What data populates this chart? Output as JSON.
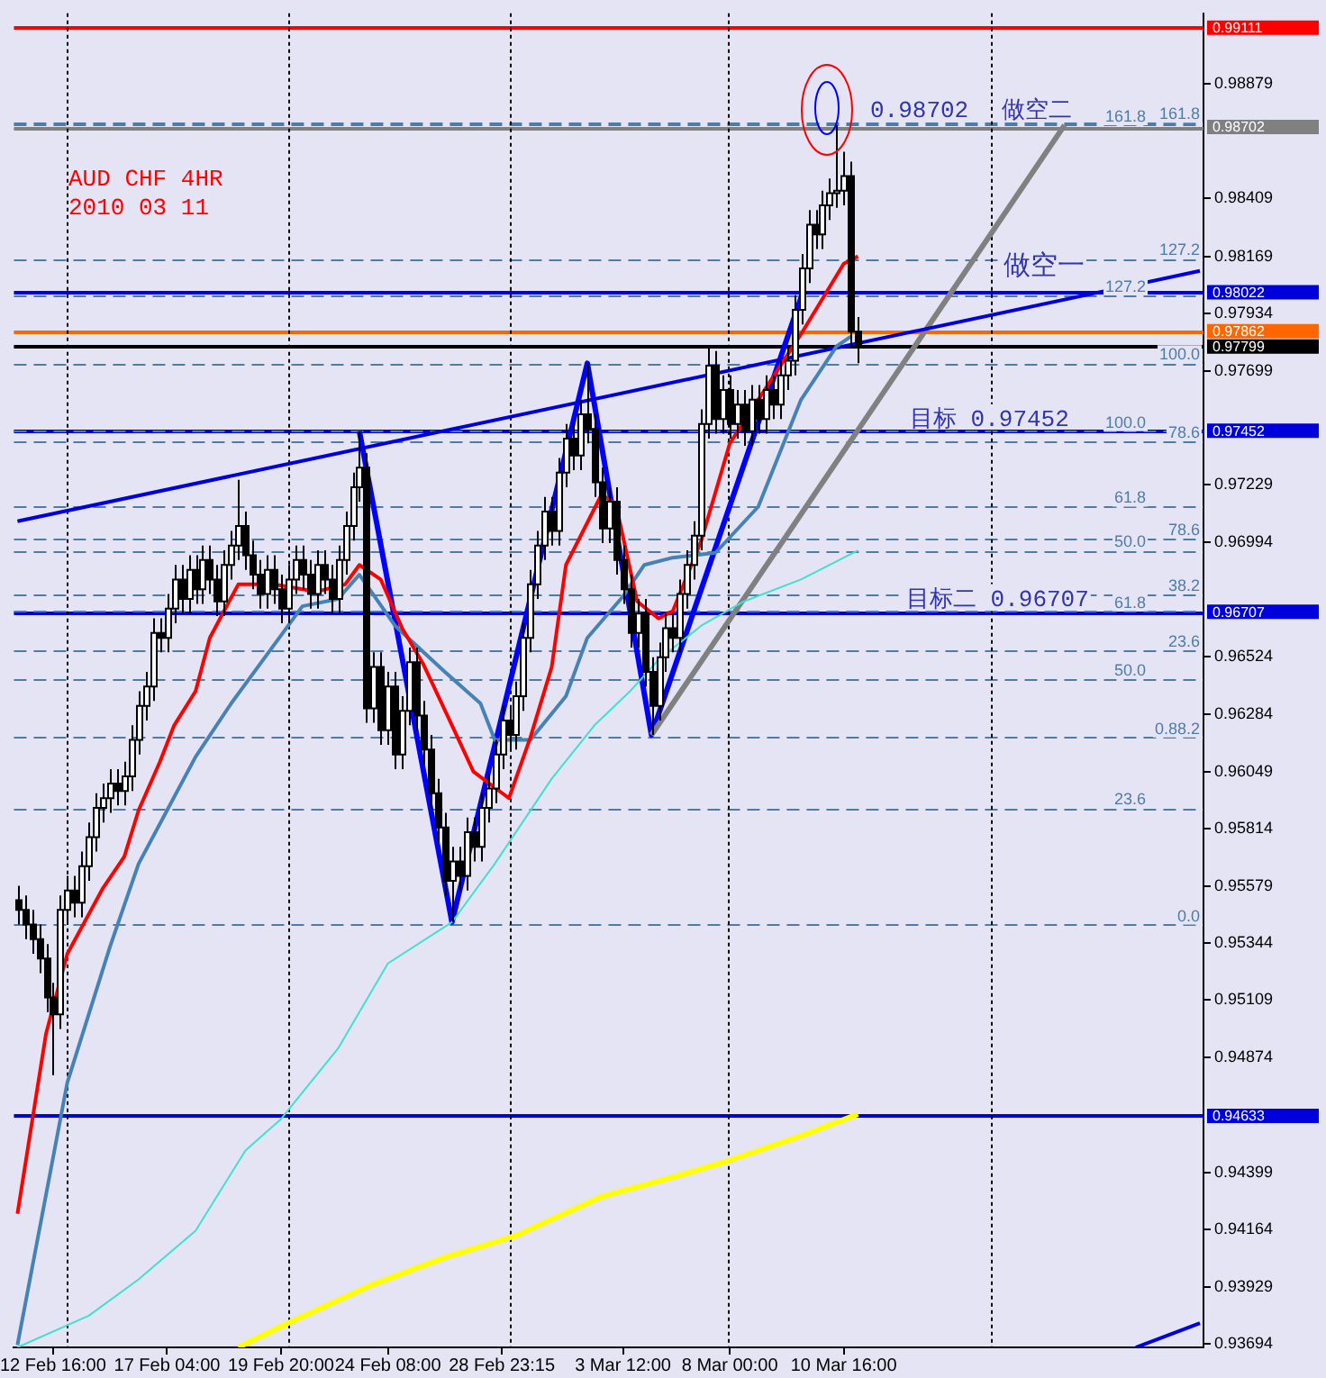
{
  "chart_data": {
    "type": "candlestick",
    "title": "AUD CHF 4HR",
    "subtitle": "2010 03 11",
    "categories": [
      null,
      null,
      null,
      null,
      null,
      "12 Feb 16:00",
      null,
      null,
      null,
      null,
      null,
      null,
      null,
      null,
      null,
      null,
      null,
      null,
      null,
      null,
      null,
      "17 Feb 04:00",
      null,
      null,
      null,
      null,
      null,
      null,
      null,
      null,
      null,
      null,
      null,
      null,
      null,
      null,
      null,
      "19 Feb 20:00",
      null,
      null,
      null,
      null,
      null,
      null,
      null,
      null,
      null,
      null,
      null,
      null,
      null,
      null,
      "24 Feb 08:00",
      null,
      null,
      null,
      null,
      null,
      null,
      null,
      null,
      null,
      null,
      null,
      null,
      null,
      null,
      null,
      "28 Feb 23:15",
      null,
      null,
      null,
      null,
      null,
      null,
      null,
      null,
      null,
      null,
      null,
      null,
      null,
      null,
      null,
      null,
      "3 Mar 12:00",
      null,
      null,
      null,
      null,
      null,
      null,
      null,
      null,
      null,
      null,
      null,
      null,
      null,
      null,
      "8 Mar 00:00",
      null,
      null,
      null,
      null,
      null,
      null,
      null,
      null,
      null,
      null,
      null,
      null,
      null,
      null,
      null,
      "10 Mar 16:00",
      null,
      null,
      null,
      null,
      null,
      null,
      null,
      null,
      null,
      null,
      null,
      null,
      null,
      null,
      null,
      null,
      null,
      null,
      null,
      null,
      null,
      null,
      null,
      null,
      null,
      null,
      null,
      null,
      null,
      null,
      null,
      null,
      null,
      null,
      null,
      null,
      null,
      null,
      null,
      null,
      null,
      null,
      null,
      null,
      null,
      null,
      null,
      null,
      null,
      null
    ],
    "ohlc": [
      [
        0.9552,
        0.9558,
        0.9542,
        0.9548
      ],
      [
        0.9548,
        0.9554,
        0.9536,
        0.9542
      ],
      [
        0.9542,
        0.9548,
        0.953,
        0.9536
      ],
      [
        0.9536,
        0.9542,
        0.9522,
        0.9528
      ],
      [
        0.9528,
        0.9534,
        0.9506,
        0.9512
      ],
      [
        0.9512,
        0.9518,
        0.948,
        0.9505
      ],
      [
        0.9505,
        0.9554,
        0.9499,
        0.9548
      ],
      [
        0.9548,
        0.9562,
        0.9542,
        0.9556
      ],
      [
        0.9556,
        0.9562,
        0.9545,
        0.9551
      ],
      [
        0.9551,
        0.9572,
        0.9545,
        0.9566
      ],
      [
        0.9566,
        0.9584,
        0.956,
        0.9578
      ],
      [
        0.9578,
        0.9596,
        0.9572,
        0.959
      ],
      [
        0.959,
        0.96,
        0.9584,
        0.9594
      ],
      [
        0.9594,
        0.9606,
        0.9588,
        0.96
      ],
      [
        0.96,
        0.9606,
        0.9591,
        0.9597
      ],
      [
        0.9597,
        0.9609,
        0.9591,
        0.9603
      ],
      [
        0.9603,
        0.9624,
        0.9597,
        0.9618
      ],
      [
        0.9618,
        0.9638,
        0.9612,
        0.9632
      ],
      [
        0.9632,
        0.9646,
        0.9626,
        0.964
      ],
      [
        0.964,
        0.9668,
        0.9634,
        0.9662
      ],
      [
        0.9662,
        0.9668,
        0.9654,
        0.966
      ],
      [
        0.966,
        0.9678,
        0.9654,
        0.9672
      ],
      [
        0.9672,
        0.969,
        0.9666,
        0.9684
      ],
      [
        0.9684,
        0.969,
        0.967,
        0.9676
      ],
      [
        0.9676,
        0.9694,
        0.967,
        0.9688
      ],
      [
        0.9688,
        0.9694,
        0.9674,
        0.968
      ],
      [
        0.968,
        0.9698,
        0.9674,
        0.9692
      ],
      [
        0.9692,
        0.9698,
        0.9678,
        0.9684
      ],
      [
        0.9684,
        0.969,
        0.9669,
        0.9675
      ],
      [
        0.9675,
        0.9696,
        0.9669,
        0.969
      ],
      [
        0.969,
        0.9704,
        0.9684,
        0.9698
      ],
      [
        0.9698,
        0.9725,
        0.9692,
        0.9706
      ],
      [
        0.9706,
        0.9712,
        0.9688,
        0.9694
      ],
      [
        0.9694,
        0.97,
        0.968,
        0.9686
      ],
      [
        0.9686,
        0.9692,
        0.9672,
        0.9678
      ],
      [
        0.9678,
        0.9694,
        0.9672,
        0.9688
      ],
      [
        0.9688,
        0.9694,
        0.9674,
        0.968
      ],
      [
        0.968,
        0.9686,
        0.9666,
        0.9672
      ],
      [
        0.9672,
        0.969,
        0.9666,
        0.9684
      ],
      [
        0.9684,
        0.9698,
        0.9678,
        0.9692
      ],
      [
        0.9692,
        0.9698,
        0.968,
        0.9686
      ],
      [
        0.9686,
        0.9692,
        0.9672,
        0.9678
      ],
      [
        0.9678,
        0.9696,
        0.9672,
        0.969
      ],
      [
        0.969,
        0.9696,
        0.9678,
        0.9684
      ],
      [
        0.9684,
        0.969,
        0.967,
        0.9676
      ],
      [
        0.9676,
        0.9698,
        0.967,
        0.9692
      ],
      [
        0.9692,
        0.9712,
        0.9686,
        0.9706
      ],
      [
        0.9706,
        0.9728,
        0.97,
        0.9722
      ],
      [
        0.9722,
        0.9745,
        0.9716,
        0.973
      ],
      [
        0.973,
        0.9736,
        0.9625,
        0.9631
      ],
      [
        0.9631,
        0.9654,
        0.9625,
        0.9648
      ],
      [
        0.9648,
        0.9654,
        0.9616,
        0.9622
      ],
      [
        0.9622,
        0.9646,
        0.9616,
        0.964
      ],
      [
        0.964,
        0.9646,
        0.9606,
        0.9612
      ],
      [
        0.9612,
        0.9636,
        0.9606,
        0.963
      ],
      [
        0.963,
        0.9656,
        0.9624,
        0.965
      ],
      [
        0.965,
        0.9656,
        0.9622,
        0.9628
      ],
      [
        0.9628,
        0.9634,
        0.9608,
        0.9614
      ],
      [
        0.9614,
        0.962,
        0.959,
        0.9596
      ],
      [
        0.9596,
        0.9602,
        0.9576,
        0.9582
      ],
      [
        0.9582,
        0.9588,
        0.9554,
        0.956
      ],
      [
        0.956,
        0.9574,
        0.9543,
        0.9568
      ],
      [
        0.9568,
        0.9574,
        0.9556,
        0.9562
      ],
      [
        0.9562,
        0.9586,
        0.9556,
        0.958
      ],
      [
        0.958,
        0.9586,
        0.9568,
        0.9574
      ],
      [
        0.9574,
        0.9596,
        0.9568,
        0.959
      ],
      [
        0.959,
        0.9604,
        0.9584,
        0.9598
      ],
      [
        0.9598,
        0.9618,
        0.9592,
        0.9612
      ],
      [
        0.9612,
        0.9632,
        0.9606,
        0.9626
      ],
      [
        0.9626,
        0.9632,
        0.9614,
        0.962
      ],
      [
        0.962,
        0.9642,
        0.9614,
        0.9636
      ],
      [
        0.9636,
        0.9666,
        0.963,
        0.966
      ],
      [
        0.966,
        0.9688,
        0.9654,
        0.9682
      ],
      [
        0.9682,
        0.9704,
        0.9676,
        0.9698
      ],
      [
        0.9698,
        0.9718,
        0.9692,
        0.9712
      ],
      [
        0.9712,
        0.9718,
        0.9698,
        0.9704
      ],
      [
        0.9704,
        0.9734,
        0.9698,
        0.9728
      ],
      [
        0.9728,
        0.9748,
        0.9722,
        0.9742
      ],
      [
        0.9742,
        0.9748,
        0.9729,
        0.9735
      ],
      [
        0.9735,
        0.9758,
        0.9729,
        0.9752
      ],
      [
        0.9752,
        0.9773,
        0.974,
        0.9746
      ],
      [
        0.9746,
        0.9752,
        0.9718,
        0.9724
      ],
      [
        0.9724,
        0.973,
        0.9699,
        0.9705
      ],
      [
        0.9705,
        0.9722,
        0.9699,
        0.9716
      ],
      [
        0.9716,
        0.9722,
        0.9686,
        0.9692
      ],
      [
        0.9692,
        0.9698,
        0.9674,
        0.968
      ],
      [
        0.968,
        0.9686,
        0.9656,
        0.9662
      ],
      [
        0.9662,
        0.9676,
        0.9656,
        0.967
      ],
      [
        0.967,
        0.9676,
        0.964,
        0.9646
      ],
      [
        0.9646,
        0.9652,
        0.962,
        0.9632
      ],
      [
        0.9632,
        0.9658,
        0.9626,
        0.9652
      ],
      [
        0.9652,
        0.967,
        0.9646,
        0.9664
      ],
      [
        0.9664,
        0.967,
        0.9654,
        0.966
      ],
      [
        0.966,
        0.9684,
        0.9654,
        0.9678
      ],
      [
        0.9678,
        0.9696,
        0.9672,
        0.969
      ],
      [
        0.969,
        0.9708,
        0.9684,
        0.9702
      ],
      [
        0.9702,
        0.9754,
        0.9696,
        0.9748
      ],
      [
        0.9748,
        0.978,
        0.9742,
        0.9772
      ],
      [
        0.9772,
        0.9778,
        0.9744,
        0.975
      ],
      [
        0.975,
        0.9768,
        0.9744,
        0.9762
      ],
      [
        0.9762,
        0.9768,
        0.9742,
        0.9748
      ],
      [
        0.9748,
        0.9762,
        0.9742,
        0.9756
      ],
      [
        0.9756,
        0.9762,
        0.9739,
        0.9745
      ],
      [
        0.9745,
        0.9764,
        0.9739,
        0.9758
      ],
      [
        0.9758,
        0.9764,
        0.9744,
        0.975
      ],
      [
        0.975,
        0.9768,
        0.9744,
        0.9762
      ],
      [
        0.9762,
        0.9768,
        0.975,
        0.9756
      ],
      [
        0.9756,
        0.9774,
        0.975,
        0.9768
      ],
      [
        0.9768,
        0.978,
        0.9762,
        0.9774
      ],
      [
        0.9774,
        0.9801,
        0.9768,
        0.9795
      ],
      [
        0.9795,
        0.9818,
        0.9789,
        0.9812
      ],
      [
        0.9812,
        0.9836,
        0.9806,
        0.983
      ],
      [
        0.983,
        0.9836,
        0.982,
        0.9826
      ],
      [
        0.9826,
        0.9844,
        0.982,
        0.9838
      ],
      [
        0.9838,
        0.9849,
        0.9832,
        0.9843
      ],
      [
        0.9843,
        0.9871,
        0.9837,
        0.9844
      ],
      [
        0.9844,
        0.986,
        0.9838,
        0.985
      ],
      [
        0.985,
        0.9856,
        0.978,
        0.9786
      ],
      [
        0.9786,
        0.9792,
        0.9773,
        0.978
      ],
      null,
      null,
      null,
      null,
      null,
      null,
      null,
      null,
      null,
      null,
      null,
      null,
      null,
      null,
      null,
      null,
      null,
      null,
      null,
      null,
      null,
      null,
      null,
      null,
      null,
      null,
      null,
      null,
      null,
      null,
      null,
      null,
      null,
      null,
      null,
      null,
      null,
      null,
      null,
      null,
      null,
      null,
      null,
      null,
      null,
      null,
      null,
      null
    ],
    "series": [
      {
        "type": "line",
        "color": "#ff0000",
        "values": [
          0.9423,
          null,
          null,
          null,
          0.9497,
          null,
          null,
          0.953,
          null,
          null,
          null,
          null,
          0.9557,
          null,
          null,
          0.957,
          null,
          0.9589,
          null,
          null,
          0.9609,
          null,
          0.9624,
          null,
          null,
          0.9638,
          null,
          0.966,
          null,
          null,
          null,
          0.9682,
          null,
          null,
          null,
          null,
          0.9682,
          null,
          null,
          null,
          null,
          null,
          0.9679,
          null,
          null,
          null,
          0.9682,
          null,
          0.969,
          null,
          null,
          0.9684,
          null,
          null,
          0.9664,
          null,
          null,
          0.9649,
          null,
          null,
          null,
          0.9624,
          null,
          null,
          0.9605,
          null,
          null,
          null,
          null,
          0.9594,
          null,
          null,
          0.9619,
          null,
          null,
          0.9648,
          null,
          0.969,
          null,
          null,
          null,
          null,
          0.9719,
          null,
          0.9715,
          null,
          null,
          0.9675,
          null,
          null,
          0.9668,
          null,
          0.9671,
          null,
          null,
          null,
          0.97,
          null,
          null,
          null,
          0.974,
          null,
          null,
          null,
          null,
          null,
          null,
          null,
          null,
          null,
          0.9785,
          null,
          null,
          null,
          null,
          null,
          0.9814,
          null,
          0.9817,
          null,
          null,
          null,
          null,
          null,
          null,
          null,
          null,
          null,
          null,
          null,
          null,
          null,
          null,
          null,
          null,
          null,
          null,
          null,
          null,
          null,
          null,
          null,
          null,
          null,
          null,
          null,
          null,
          null,
          null,
          null,
          null,
          null,
          null,
          null,
          null,
          null,
          null,
          null,
          null,
          null,
          null,
          null,
          null,
          null,
          null,
          null,
          null
        ]
      },
      {
        "type": "line",
        "color": "#4682b4",
        "values": [
          0.9369,
          null,
          null,
          null,
          null,
          null,
          null,
          0.9477,
          null,
          null,
          null,
          null,
          null,
          0.9533,
          null,
          null,
          null,
          0.9567,
          null,
          null,
          null,
          0.9589,
          null,
          null,
          null,
          0.9611,
          null,
          null,
          null,
          null,
          0.9633,
          null,
          null,
          null,
          null,
          null,
          null,
          null,
          null,
          null,
          0.9673,
          null,
          null,
          null,
          null,
          0.9676,
          null,
          null,
          0.9686,
          null,
          null,
          null,
          null,
          0.9665,
          null,
          null,
          null,
          null,
          null,
          null,
          0.9646,
          null,
          null,
          null,
          null,
          0.9633,
          null,
          0.9618,
          null,
          null,
          null,
          null,
          0.9618,
          null,
          null,
          null,
          null,
          0.9636,
          null,
          null,
          0.966,
          null,
          null,
          null,
          null,
          0.9677,
          null,
          null,
          0.969,
          null,
          null,
          null,
          0.9693,
          null,
          null,
          null,
          null,
          null,
          0.9695,
          null,
          null,
          null,
          null,
          null,
          0.9714,
          null,
          null,
          null,
          null,
          null,
          0.9758,
          null,
          null,
          null,
          null,
          0.978,
          null,
          0.9784,
          null,
          null,
          null,
          null,
          null,
          null,
          null,
          null,
          null,
          null,
          null,
          null,
          null,
          null,
          null,
          null,
          null,
          null,
          null,
          null,
          null,
          null,
          null,
          null,
          null,
          null,
          null,
          null,
          null,
          null,
          null,
          null,
          null,
          null,
          null,
          null,
          null,
          null,
          null,
          null,
          null,
          null,
          null,
          null,
          null,
          null,
          null,
          null,
          null
        ]
      },
      {
        "type": "line",
        "color": "#40e0d0",
        "values": [
          0.9368,
          null,
          null,
          null,
          null,
          null,
          null,
          null,
          null,
          null,
          0.9381,
          null,
          null,
          null,
          null,
          null,
          null,
          0.9396,
          null,
          null,
          null,
          null,
          null,
          null,
          null,
          0.9416,
          null,
          null,
          null,
          null,
          null,
          null,
          0.9449,
          null,
          null,
          null,
          null,
          0.9462,
          null,
          null,
          null,
          null,
          null,
          null,
          null,
          0.9491,
          null,
          null,
          null,
          null,
          null,
          null,
          0.9526,
          null,
          null,
          null,
          null,
          null,
          null,
          null,
          null,
          0.9543,
          null,
          null,
          null,
          null,
          null,
          0.9567,
          null,
          null,
          null,
          null,
          null,
          null,
          null,
          0.9602,
          null,
          null,
          null,
          null,
          null,
          0.9624,
          null,
          null,
          null,
          null,
          0.9638,
          null,
          null,
          null,
          0.9651,
          null,
          null,
          null,
          null,
          null,
          0.9665,
          null,
          null,
          null,
          null,
          null,
          0.9675,
          null,
          null,
          null,
          null,
          null,
          null,
          null,
          0.9684,
          null,
          null,
          null,
          null,
          null,
          null,
          null,
          0.9696,
          null,
          null,
          null,
          null,
          null,
          null,
          null,
          null,
          null,
          null,
          null,
          null,
          null,
          null,
          null,
          null,
          null,
          null,
          null,
          null,
          null,
          null,
          null,
          null,
          null,
          null,
          null,
          null,
          null,
          null,
          null,
          null,
          null,
          null,
          null,
          null,
          null,
          null,
          null,
          null,
          null,
          null,
          null,
          null,
          null,
          null,
          null,
          null
        ]
      },
      {
        "type": "line",
        "color": "#ffff00",
        "values": [
          null,
          null,
          null,
          null,
          null,
          null,
          null,
          null,
          null,
          null,
          null,
          null,
          null,
          null,
          null,
          null,
          null,
          null,
          null,
          null,
          null,
          null,
          null,
          null,
          null,
          null,
          null,
          null,
          null,
          null,
          null,
          0.9368,
          null,
          null,
          null,
          null,
          null,
          null,
          0.9378,
          null,
          null,
          null,
          null,
          null,
          null,
          null,
          null,
          null,
          null,
          null,
          0.9394,
          null,
          null,
          null,
          null,
          null,
          null,
          null,
          null,
          null,
          0.9405,
          null,
          null,
          null,
          null,
          null,
          null,
          null,
          null,
          null,
          0.9414,
          null,
          null,
          null,
          null,
          null,
          null,
          null,
          null,
          null,
          null,
          null,
          0.943,
          null,
          null,
          null,
          null,
          null,
          null,
          null,
          null,
          null,
          0.9438,
          null,
          null,
          null,
          null,
          null,
          null,
          null,
          0.9445,
          null,
          null,
          null,
          null,
          null,
          null,
          null,
          null,
          null,
          0.9455,
          null,
          null,
          null,
          null,
          null,
          null,
          null,
          0.9464,
          null,
          null,
          null,
          null,
          null,
          null,
          null,
          null,
          null,
          null,
          null,
          null,
          null,
          null,
          null,
          null,
          null,
          null,
          null,
          null,
          null,
          null,
          null,
          null,
          null,
          null,
          null,
          null,
          null,
          null,
          null,
          null,
          null,
          null,
          null,
          null,
          null,
          null,
          null,
          null,
          null,
          null,
          null,
          null,
          null,
          null,
          null,
          null
        ]
      },
      {
        "type": "line",
        "color": "#0000dd",
        "values": [
          0.9708,
          null,
          null,
          null,
          null,
          null,
          null,
          null,
          null,
          null,
          null,
          null,
          null,
          null,
          null,
          null,
          null,
          null,
          null,
          null,
          null,
          null,
          null,
          null,
          null,
          null,
          null,
          null,
          null,
          null,
          null,
          null,
          null,
          null,
          null,
          null,
          null,
          null,
          null,
          null,
          null,
          null,
          null,
          null,
          null,
          null,
          null,
          null,
          null,
          null,
          null,
          null,
          null,
          null,
          null,
          null,
          null,
          null,
          null,
          null,
          null,
          null,
          null,
          null,
          null,
          null,
          null,
          null,
          null,
          null,
          null,
          null,
          null,
          null,
          null,
          null,
          null,
          null,
          null,
          null,
          null,
          null,
          null,
          null,
          null,
          null,
          null,
          null,
          null,
          null,
          null,
          null,
          null,
          null,
          null,
          null,
          null,
          null,
          null,
          null,
          null,
          null,
          null,
          null,
          null,
          null,
          null,
          null,
          null,
          null,
          null,
          null,
          null,
          null,
          null,
          null,
          null,
          null,
          null,
          null,
          null,
          null,
          null,
          null,
          null,
          null,
          null,
          null,
          null,
          null,
          null,
          null,
          null,
          null,
          null,
          null,
          null,
          null,
          null,
          null,
          null,
          null,
          null,
          null,
          null,
          null,
          null,
          null,
          null,
          null,
          null,
          null,
          null,
          null,
          null,
          null,
          null,
          null,
          null,
          null,
          null,
          null,
          null,
          null,
          null,
          null,
          0.9811
        ]
      },
      {
        "type": "line",
        "color": "#808080",
        "values": [
          null,
          null,
          null,
          null,
          null,
          null,
          null,
          null,
          null,
          null,
          null,
          null,
          null,
          null,
          null,
          null,
          null,
          null,
          null,
          null,
          null,
          null,
          null,
          null,
          null,
          null,
          null,
          null,
          null,
          null,
          null,
          null,
          null,
          null,
          null,
          null,
          null,
          null,
          null,
          null,
          null,
          null,
          null,
          null,
          null,
          null,
          null,
          null,
          null,
          null,
          null,
          null,
          null,
          null,
          null,
          null,
          null,
          null,
          null,
          null,
          null,
          null,
          null,
          null,
          null,
          null,
          null,
          null,
          null,
          null,
          null,
          null,
          null,
          null,
          null,
          null,
          null,
          null,
          null,
          null,
          null,
          null,
          null,
          null,
          null,
          null,
          null,
          null,
          null,
          0.962,
          null,
          null,
          null,
          null,
          null,
          null,
          null,
          null,
          null,
          null,
          null,
          null,
          null,
          null,
          null,
          null,
          null,
          null,
          null,
          null,
          null,
          null,
          null,
          null,
          null,
          null,
          null,
          null,
          null,
          null,
          null,
          null,
          null,
          null,
          null,
          null,
          null,
          null,
          null,
          null,
          null,
          null,
          null,
          null,
          null,
          null,
          null,
          null,
          null,
          null,
          null,
          null,
          null,
          null,
          null,
          null,
          null,
          0.9871,
          null,
          null,
          null,
          null,
          null,
          null,
          null,
          null,
          null,
          null,
          null,
          null,
          null,
          null,
          null,
          null,
          null,
          null,
          null
        ]
      },
      {
        "type": "line",
        "color": "#0000ff",
        "values": [
          null,
          null,
          null,
          null,
          null,
          null,
          null,
          null,
          null,
          null,
          null,
          null,
          null,
          null,
          null,
          null,
          null,
          null,
          null,
          null,
          null,
          null,
          null,
          null,
          null,
          null,
          null,
          null,
          null,
          null,
          null,
          null,
          null,
          null,
          null,
          null,
          null,
          null,
          null,
          null,
          null,
          null,
          null,
          null,
          null,
          null,
          null,
          null,
          0.9745,
          null,
          null,
          null,
          null,
          null,
          null,
          null,
          null,
          null,
          null,
          null,
          null,
          0.9543,
          null,
          null,
          null,
          null,
          null,
          null,
          null,
          null,
          null,
          null,
          null,
          null,
          null,
          null,
          null,
          null,
          null,
          null,
          0.9773,
          null,
          null,
          null,
          null,
          null,
          null,
          null,
          null,
          0.962,
          null,
          null,
          null,
          null,
          null,
          null,
          null,
          null,
          null,
          null,
          null,
          null,
          null,
          null,
          null,
          null,
          null,
          null,
          null,
          null,
          0.98,
          null,
          null,
          null,
          null,
          null,
          null,
          null,
          null,
          null,
          null,
          null,
          null,
          null,
          null,
          null,
          null,
          null,
          null,
          null,
          null,
          null,
          null,
          null,
          null,
          null,
          null,
          null,
          null,
          null,
          null,
          null,
          null,
          null,
          null,
          null,
          null,
          null,
          null,
          null,
          null,
          null,
          null,
          null,
          null,
          null,
          null,
          null,
          null,
          null,
          null,
          null,
          null,
          null,
          null,
          null,
          null
        ]
      },
      {
        "type": "line",
        "color": "#0000dd",
        "values": [
          null,
          null,
          null,
          null,
          null,
          null,
          null,
          null,
          null,
          null,
          null,
          null,
          null,
          null,
          null,
          null,
          null,
          null,
          null,
          null,
          null,
          null,
          null,
          null,
          null,
          null,
          null,
          null,
          null,
          null,
          null,
          null,
          null,
          null,
          null,
          null,
          null,
          null,
          null,
          null,
          null,
          null,
          null,
          null,
          null,
          null,
          null,
          null,
          null,
          null,
          null,
          null,
          null,
          null,
          null,
          null,
          null,
          null,
          null,
          null,
          null,
          null,
          null,
          null,
          null,
          null,
          null,
          null,
          null,
          null,
          null,
          null,
          null,
          null,
          null,
          null,
          null,
          null,
          null,
          null,
          null,
          null,
          null,
          null,
          null,
          null,
          null,
          null,
          null,
          null,
          null,
          null,
          null,
          null,
          null,
          null,
          null,
          null,
          null,
          null,
          null,
          null,
          null,
          null,
          null,
          null,
          null,
          null,
          null,
          null,
          null,
          null,
          null,
          null,
          null,
          null,
          null,
          null,
          null,
          null,
          null,
          null,
          null,
          null,
          null,
          null,
          null,
          null,
          null,
          null,
          null,
          null,
          null,
          null,
          null,
          null,
          null,
          null,
          null,
          null,
          null,
          null,
          null,
          null,
          null,
          null,
          null,
          null,
          null,
          null,
          null,
          null,
          null,
          null,
          null,
          null,
          null,
          0.9368,
          null,
          null,
          null,
          null,
          null,
          null,
          null,
          null,
          0.9378
        ]
      }
    ],
    "ylim": [
      0.9368,
      0.9917
    ],
    "yticks": [
      0.98879,
      0.98409,
      0.98169,
      0.97934,
      0.97699,
      0.97229,
      0.96994,
      0.96524,
      0.96284,
      0.96049,
      0.95814,
      0.95579,
      0.95344,
      0.95109,
      0.94874,
      0.94399,
      0.94164,
      0.93929,
      0.93694
    ],
    "ref_lines": [
      {
        "axis": "y",
        "value": 0.99111,
        "label": "0.99111",
        "color": "#ff0000",
        "line_style": "solid"
      },
      {
        "axis": "y",
        "value": 0.98702,
        "label": "0.98702",
        "color": "#808080",
        "line_style": "solid"
      },
      {
        "axis": "y",
        "value": 0.98022,
        "label": "0.98022",
        "color": "#0000dd",
        "line_style": "solid"
      },
      {
        "axis": "y",
        "value": 0.97862,
        "label": "0.97862",
        "color": "#ff6600",
        "line_style": "solid"
      },
      {
        "axis": "y",
        "value": 0.97799,
        "label": "0.97799",
        "color": "#000000",
        "line_style": "solid"
      },
      {
        "axis": "y",
        "value": 0.97452,
        "label": "0.97452",
        "color": "#0000dd",
        "line_style": "solid"
      },
      {
        "axis": "y",
        "value": 0.96707,
        "label": "0.96707",
        "color": "#0000dd",
        "line_style": "solid"
      },
      {
        "axis": "y",
        "value": 0.94633,
        "label": "0.94633",
        "color": "#0000dd",
        "line_style": "solid"
      },
      {
        "axis": "y",
        "value": 0.9872,
        "color": "#4f7ca5",
        "line_style": "dashed"
      },
      {
        "axis": "y",
        "value": 0.9871,
        "color": "#4f7ca5",
        "line_style": "dashed"
      },
      {
        "axis": "y",
        "value": 0.9816,
        "color": "#4f7ca5",
        "line_style": "dashed"
      },
      {
        "axis": "y",
        "value": 0.9801,
        "color": "#4f7ca5",
        "line_style": "dashed"
      },
      {
        "axis": "y",
        "value": 0.9773,
        "color": "#4f7ca5",
        "line_style": "dashed"
      },
      {
        "axis": "y",
        "value": 0.9745,
        "color": "#4f7ca5",
        "line_style": "dashed"
      },
      {
        "axis": "y",
        "value": 0.9741,
        "color": "#4f7ca5",
        "line_style": "dashed"
      },
      {
        "axis": "y",
        "value": 0.9714,
        "color": "#4f7ca5",
        "line_style": "dashed"
      },
      {
        "axis": "y",
        "value": 0.9701,
        "color": "#4f7ca5",
        "line_style": "dashed"
      },
      {
        "axis": "y",
        "value": 0.9696,
        "color": "#4f7ca5",
        "line_style": "dashed"
      },
      {
        "axis": "y",
        "value": 0.9678,
        "color": "#4f7ca5",
        "line_style": "dashed"
      },
      {
        "axis": "y",
        "value": 0.9671,
        "color": "#4f7ca5",
        "line_style": "dashed"
      },
      {
        "axis": "y",
        "value": 0.9655,
        "color": "#4f7ca5",
        "line_style": "dashed"
      },
      {
        "axis": "y",
        "value": 0.9643,
        "color": "#4f7ca5",
        "line_style": "dashed"
      },
      {
        "axis": "y",
        "value": 0.9619,
        "color": "#4f7ca5",
        "line_style": "dashed"
      },
      {
        "axis": "y",
        "value": 0.959,
        "color": "#4f7ca5",
        "line_style": "dashed"
      },
      {
        "axis": "y",
        "value": 0.9542,
        "color": "#4f7ca5",
        "line_style": "dashed"
      }
    ],
    "annotations": [
      "做空一",
      {
        "text": "0.98702",
        "y": 0.9872
      },
      {
        "text": "做空二",
        "y": 0.9872
      },
      {
        "text": "目标 0.97452",
        "y": 0.9745
      },
      {
        "text": "目标二 0.96707",
        "y": 0.9671
      },
      {
        "text": "161.8",
        "y": 0.9872
      },
      {
        "text": "161.8",
        "y": 0.9871
      },
      {
        "text": "127.2",
        "y": 0.9816
      },
      {
        "text": "127.2",
        "y": 0.9801
      },
      {
        "text": "100.0",
        "y": 0.9773
      },
      {
        "text": "100.0",
        "y": 0.9745
      },
      {
        "text": "78.6",
        "y": 0.9741
      },
      {
        "text": "61.8",
        "y": 0.9714
      },
      {
        "text": "78.6",
        "y": 0.9701
      },
      {
        "text": "50.0",
        "y": 0.9696
      },
      {
        "text": "38.2",
        "y": 0.9678
      },
      {
        "text": "61.8",
        "y": 0.9671
      },
      {
        "text": "23.6",
        "y": 0.9655
      },
      {
        "text": "50.0",
        "y": 0.9643
      },
      {
        "text": "0.88.2",
        "y": 0.9619
      },
      {
        "text": "23.6",
        "y": 0.959
      },
      {
        "text": "0.0",
        "y": 0.9542
      }
    ]
  }
}
